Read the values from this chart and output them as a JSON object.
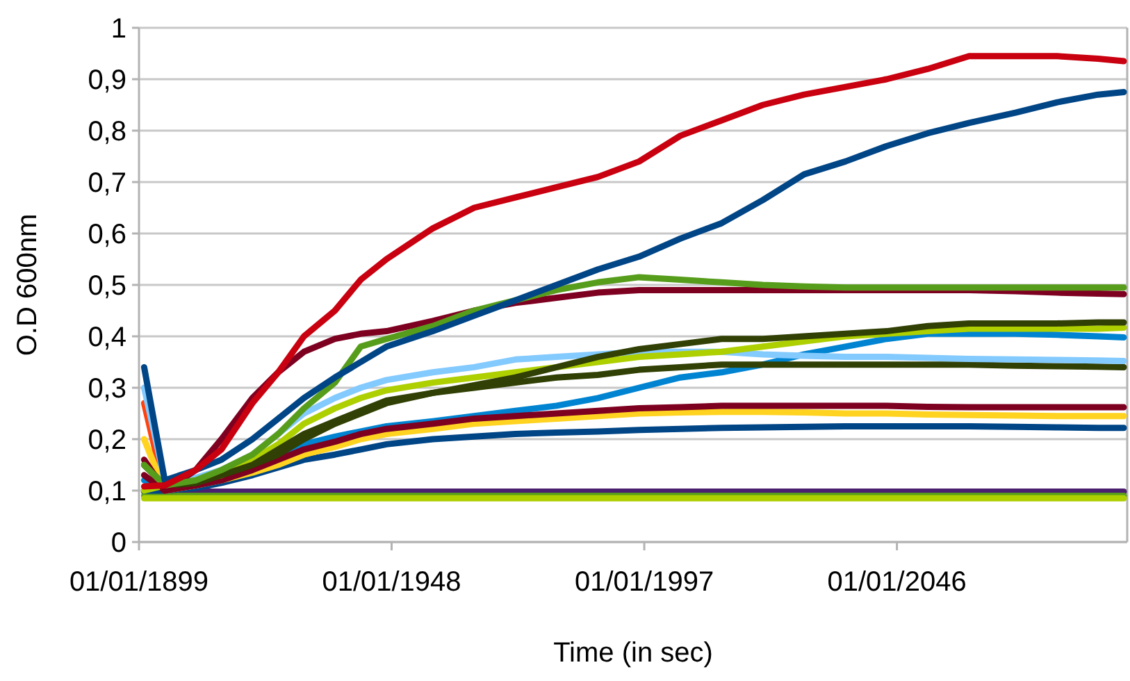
{
  "chart_data": {
    "type": "line",
    "xlabel": "Time (in sec)",
    "ylabel": "O.D 600nm",
    "x": [
      "1900-01-01",
      "1904-01-01",
      "1910-01-01",
      "1915-01-01",
      "1921-01-01",
      "1926-01-01",
      "1931-01-01",
      "1937-01-01",
      "1942-01-01",
      "1947-01-01",
      "1956-01-01",
      "1964-01-01",
      "1972-01-01",
      "1980-01-01",
      "1988-01-01",
      "1996-01-01",
      "2004-01-01",
      "2012-01-01",
      "2020-01-01",
      "2028-01-01",
      "2036-01-01",
      "2044-01-01",
      "2052-01-01",
      "2060-01-01",
      "2069-01-01",
      "2077-01-01",
      "2085-01-01",
      "2090-01-01"
    ],
    "xlim": [
      "1899-01-01",
      "2090-09-01"
    ],
    "xticks": [
      {
        "value": "1899-01-01",
        "label": "01/01/1899"
      },
      {
        "value": "1948-01-01",
        "label": "01/01/1948"
      },
      {
        "value": "1997-01-01",
        "label": "01/01/1997"
      },
      {
        "value": "2046-01-01",
        "label": "01/01/2046"
      }
    ],
    "ylim": [
      0,
      1
    ],
    "yticks": [
      {
        "value": 0,
        "label": "0"
      },
      {
        "value": 0.1,
        "label": "0,1"
      },
      {
        "value": 0.2,
        "label": "0,2"
      },
      {
        "value": 0.3,
        "label": "0,3"
      },
      {
        "value": 0.4,
        "label": "0,4"
      },
      {
        "value": 0.5,
        "label": "0,5"
      },
      {
        "value": 0.6,
        "label": "0,6"
      },
      {
        "value": 0.7,
        "label": "0,7"
      },
      {
        "value": 0.8,
        "label": "0,8"
      },
      {
        "value": 0.9,
        "label": "0,9"
      },
      {
        "value": 1,
        "label": "1"
      }
    ],
    "grid": "y",
    "marker": "none",
    "line_style": "solid",
    "series": [
      {
        "color": "#ff420e",
        "values": [
          0.27,
          0.1,
          null,
          null,
          null,
          null,
          null,
          null,
          null,
          null,
          null,
          null,
          null,
          null,
          null,
          null,
          null,
          null,
          null,
          null,
          null,
          null,
          null,
          null,
          null,
          null,
          null,
          null
        ]
      },
      {
        "color": "#4b1f6f",
        "values": [
          0.098,
          0.098,
          0.098,
          0.098,
          0.098,
          0.098,
          0.098,
          0.098,
          0.098,
          0.098,
          0.098,
          0.098,
          0.098,
          0.098,
          0.098,
          0.098,
          0.098,
          0.098,
          0.098,
          0.098,
          0.098,
          0.098,
          0.098,
          0.098,
          0.098,
          0.098,
          0.098,
          0.098
        ]
      },
      {
        "color": "#579d1c",
        "values": [
          0.09,
          0.09,
          0.09,
          0.09,
          0.09,
          0.09,
          0.09,
          0.09,
          0.09,
          0.09,
          0.09,
          0.09,
          0.09,
          0.09,
          0.09,
          0.09,
          0.09,
          0.09,
          0.09,
          0.09,
          0.09,
          0.09,
          0.09,
          0.09,
          0.09,
          0.09,
          0.09,
          0.09
        ]
      },
      {
        "color": "#aecf00",
        "values": [
          0.085,
          0.085,
          0.085,
          0.085,
          0.085,
          0.085,
          0.085,
          0.085,
          0.085,
          0.085,
          0.085,
          0.085,
          0.085,
          0.085,
          0.085,
          0.085,
          0.085,
          0.085,
          0.085,
          0.085,
          0.085,
          0.085,
          0.085,
          0.085,
          0.085,
          0.085,
          0.085,
          0.085
        ]
      },
      {
        "color": "#004586",
        "values": [
          0.1,
          0.1,
          0.105,
          0.115,
          0.13,
          0.145,
          0.16,
          0.17,
          0.18,
          0.19,
          0.2,
          0.205,
          0.21,
          0.213,
          0.215,
          0.218,
          0.22,
          0.222,
          0.223,
          0.224,
          0.225,
          0.225,
          0.225,
          0.225,
          0.224,
          0.223,
          0.222,
          0.222
        ]
      },
      {
        "color": "#ffd320",
        "values": [
          0.2,
          0.1,
          0.11,
          0.12,
          0.135,
          0.15,
          0.17,
          0.185,
          0.2,
          0.21,
          0.22,
          0.23,
          0.235,
          0.24,
          0.245,
          0.25,
          0.252,
          0.253,
          0.253,
          0.252,
          0.25,
          0.25,
          0.248,
          0.247,
          0.246,
          0.245,
          0.245,
          0.245
        ]
      },
      {
        "color": "#0084d1",
        "values": [
          0.12,
          0.11,
          0.12,
          0.13,
          0.15,
          0.17,
          0.19,
          0.205,
          0.215,
          0.225,
          0.235,
          0.245,
          0.255,
          0.265,
          0.28,
          0.3,
          0.32,
          0.33,
          0.345,
          0.365,
          0.38,
          0.395,
          0.405,
          0.405,
          0.405,
          0.403,
          0.4,
          0.398
        ]
      },
      {
        "color": "#7e0021",
        "values": [
          0.13,
          0.1,
          0.11,
          0.12,
          0.14,
          0.16,
          0.18,
          0.195,
          0.21,
          0.22,
          0.23,
          0.24,
          0.245,
          0.25,
          0.255,
          0.26,
          0.262,
          0.265,
          0.265,
          0.265,
          0.265,
          0.265,
          0.263,
          0.262,
          0.262,
          0.262,
          0.262,
          0.262
        ]
      },
      {
        "color": "#314004",
        "values": [
          0.15,
          0.11,
          0.115,
          0.13,
          0.15,
          0.17,
          0.2,
          0.23,
          0.25,
          0.27,
          0.29,
          0.3,
          0.31,
          0.32,
          0.325,
          0.335,
          0.34,
          0.345,
          0.345,
          0.345,
          0.345,
          0.345,
          0.345,
          0.345,
          0.343,
          0.342,
          0.341,
          0.34
        ]
      },
      {
        "color": "#83caff",
        "values": [
          0.3,
          0.12,
          0.125,
          0.14,
          0.17,
          0.21,
          0.25,
          0.28,
          0.3,
          0.315,
          0.33,
          0.34,
          0.355,
          0.36,
          0.365,
          0.37,
          0.37,
          0.37,
          0.365,
          0.362,
          0.36,
          0.36,
          0.358,
          0.356,
          0.355,
          0.354,
          0.353,
          0.352
        ]
      },
      {
        "color": "#aecf00",
        "values": [
          0.1,
          0.11,
          0.12,
          0.13,
          0.16,
          0.19,
          0.23,
          0.26,
          0.28,
          0.295,
          0.31,
          0.32,
          0.33,
          0.34,
          0.35,
          0.36,
          0.365,
          0.37,
          0.38,
          0.39,
          0.4,
          0.405,
          0.41,
          0.415,
          0.415,
          0.415,
          0.415,
          0.417
        ]
      },
      {
        "color": "#314004",
        "values": [
          0.15,
          0.11,
          0.115,
          0.13,
          0.15,
          0.18,
          0.21,
          0.235,
          0.255,
          0.275,
          0.29,
          0.305,
          0.32,
          0.34,
          0.36,
          0.375,
          0.385,
          0.395,
          0.395,
          0.4,
          0.405,
          0.41,
          0.42,
          0.425,
          0.425,
          0.425,
          0.427,
          0.427
        ]
      },
      {
        "color": "#7e0021",
        "values": [
          0.16,
          0.1,
          0.14,
          0.2,
          0.28,
          0.33,
          0.37,
          0.395,
          0.405,
          0.41,
          0.43,
          0.45,
          0.465,
          0.475,
          0.485,
          0.49,
          0.49,
          0.49,
          0.49,
          0.49,
          0.49,
          0.49,
          0.49,
          0.49,
          0.488,
          0.485,
          0.483,
          0.482
        ]
      },
      {
        "color": "#579d1c",
        "values": [
          0.15,
          0.11,
          0.12,
          0.14,
          0.17,
          0.21,
          0.26,
          0.31,
          0.38,
          0.395,
          0.42,
          0.45,
          0.47,
          0.49,
          0.505,
          0.515,
          0.51,
          0.505,
          0.5,
          0.497,
          0.495,
          0.495,
          0.495,
          0.495,
          0.495,
          0.495,
          0.495,
          0.495
        ]
      },
      {
        "color": "#004586",
        "values": [
          0.34,
          0.12,
          0.14,
          0.16,
          0.2,
          0.24,
          0.28,
          0.32,
          0.35,
          0.38,
          0.41,
          0.44,
          0.47,
          0.5,
          0.53,
          0.555,
          0.59,
          0.62,
          0.665,
          0.715,
          0.74,
          0.77,
          0.795,
          0.815,
          0.835,
          0.855,
          0.87,
          0.875
        ]
      },
      {
        "color": "#c9000f",
        "values": [
          0.108,
          0.11,
          0.14,
          0.18,
          0.27,
          0.33,
          0.4,
          0.45,
          0.51,
          0.55,
          0.61,
          0.65,
          0.67,
          0.69,
          0.71,
          0.74,
          0.79,
          0.82,
          0.85,
          0.87,
          0.885,
          0.9,
          0.92,
          0.945,
          0.945,
          0.945,
          0.94,
          0.935
        ]
      }
    ]
  }
}
